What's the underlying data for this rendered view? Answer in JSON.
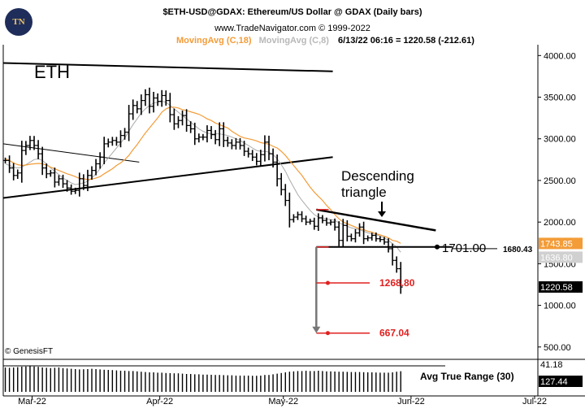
{
  "header": {
    "title": "$ETH-USD@GDAX:  Ethereum/US Dollar @ GDAX  (Daily bars)",
    "copyright": "www.TradeNavigator.com © 1999-2022",
    "ma18_label": "MovingAvg (C,18)",
    "ma8_label": "MovingAvg (C,8)",
    "last_bar": "6/13/22 06:16 = 1220.58 (-212.61)"
  },
  "watermark": "© GenesisFT",
  "colors": {
    "price": "#000000",
    "ma18": "#f39c38",
    "ma8": "#aaaaaa",
    "target": "#e02020",
    "arrow": "#777777"
  },
  "chart_data": {
    "type": "ohlc",
    "symbol": "ETH",
    "x_ticks": [
      "Mar-22",
      "Apr-22",
      "May-22",
      "Jun-22",
      "Jul-22"
    ],
    "y_ticks": [
      "4000.00",
      "3500.00",
      "3000.00",
      "2500.00",
      "2000.00",
      "1500.00",
      "1000.00",
      "500.00"
    ],
    "ylim": [
      420,
      4130
    ],
    "first_bar": "2022-02-22",
    "close": [
      2740,
      2650,
      2560,
      2590,
      2860,
      2920,
      2980,
      2920,
      2820,
      2650,
      2580,
      2590,
      2480,
      2520,
      2460,
      2410,
      2370,
      2380,
      2520,
      2440,
      2560,
      2620,
      2700,
      2780,
      2940,
      2960,
      2980,
      2960,
      3040,
      3080,
      3300,
      3400,
      3360,
      3460,
      3530,
      3390,
      3490,
      3450,
      3520,
      3460,
      3290,
      3180,
      3220,
      3280,
      3160,
      3120,
      3000,
      3020,
      3020,
      3100,
      3050,
      2990,
      3120,
      2980,
      2950,
      2920,
      2960,
      2920,
      2850,
      2820,
      2780,
      2730,
      2810,
      2960,
      2820,
      2720,
      2520,
      2390,
      2260,
      2030,
      2060,
      2090,
      2040,
      2000,
      2010,
      1950,
      2050,
      2020,
      1990,
      2000,
      1940,
      1780,
      1960,
      1830,
      1800,
      1870,
      1940,
      1800,
      1810,
      1840,
      1800,
      1790,
      1760,
      1680,
      1540,
      1440,
      1220
    ],
    "ma18_y_values": [
      2760,
      2740,
      2710,
      2690,
      2680,
      2685,
      2695,
      2700,
      2705,
      2700,
      2685,
      2660,
      2640,
      2620,
      2600,
      2580,
      2565,
      2545,
      2525,
      2520,
      2510,
      2515,
      2530,
      2545,
      2580,
      2610,
      2640,
      2680,
      2710,
      2750,
      2800,
      2870,
      2930,
      3000,
      3070,
      3130,
      3190,
      3250,
      3320,
      3360,
      3380,
      3380,
      3370,
      3350,
      3340,
      3325,
      3310,
      3295,
      3270,
      3240,
      3220,
      3190,
      3170,
      3150,
      3130,
      3090,
      3060,
      3030,
      3010,
      3000,
      2990,
      2975,
      2955,
      2945,
      2935,
      2910,
      2890,
      2850,
      2800,
      2740,
      2680,
      2620,
      2560,
      2490,
      2420,
      2360,
      2310,
      2260,
      2200,
      2150,
      2090,
      2040,
      2000,
      1980,
      1960,
      1940,
      1920,
      1910,
      1890,
      1880,
      1860,
      1845,
      1830,
      1810,
      1780,
      1770,
      1744
    ],
    "ma8_y_values": [
      2700,
      2680,
      2660,
      2650,
      2660,
      2690,
      2720,
      2750,
      2760,
      2740,
      2700,
      2650,
      2610,
      2570,
      2530,
      2500,
      2470,
      2450,
      2460,
      2470,
      2490,
      2530,
      2580,
      2640,
      2710,
      2770,
      2830,
      2890,
      2950,
      3010,
      3090,
      3170,
      3240,
      3310,
      3360,
      3400,
      3430,
      3440,
      3450,
      3440,
      3400,
      3360,
      3320,
      3280,
      3240,
      3200,
      3160,
      3120,
      3090,
      3070,
      3060,
      3060,
      3060,
      3050,
      3040,
      3020,
      3000,
      2980,
      2950,
      2920,
      2890,
      2860,
      2850,
      2850,
      2840,
      2810,
      2760,
      2690,
      2610,
      2510,
      2420,
      2330,
      2260,
      2200,
      2140,
      2090,
      2060,
      2050,
      2040,
      2030,
      2020,
      1990,
      1970,
      1950,
      1930,
      1920,
      1910,
      1890,
      1870,
      1860,
      1850,
      1830,
      1810,
      1780,
      1740,
      1700,
      1637
    ],
    "price_labels": [
      "1743.85",
      "1636.80",
      "1220.58"
    ],
    "atr": {
      "title": "Avg True Range (30)",
      "labels": [
        "41.18",
        "127.44"
      ],
      "values": [
        150,
        148,
        150,
        152,
        155,
        156,
        158,
        156,
        154,
        150,
        148,
        146,
        148,
        150,
        146,
        144,
        142,
        140,
        138,
        139,
        140,
        142,
        140,
        138,
        136,
        135,
        134,
        132,
        130,
        130,
        128,
        128,
        126,
        124,
        122,
        120,
        120,
        118,
        118,
        116,
        115,
        114,
        114,
        112,
        110,
        110,
        108,
        108,
        106,
        106,
        105,
        104,
        104,
        103,
        102,
        102,
        100,
        100,
        100,
        100,
        99,
        99,
        100,
        104,
        104,
        108,
        112,
        116,
        120,
        124,
        126,
        128,
        128,
        130,
        128,
        128,
        130,
        128,
        126,
        126,
        125,
        124,
        124,
        123,
        122,
        122,
        122,
        121,
        120,
        120,
        119,
        118,
        118,
        118,
        120,
        124,
        127
      ]
    },
    "annotations": {
      "name": "ETH",
      "pattern": "Descending\ntriangle",
      "support": "1701.00",
      "support_right": "1680.43",
      "target1": "1268.80",
      "target2": "667.04"
    },
    "channel": {
      "upper": [
        [
          "2022-02-22",
          3910
        ],
        [
          "2022-05-13",
          3810
        ]
      ],
      "lower": [
        [
          "2022-02-22",
          2290
        ],
        [
          "2022-05-13",
          2780
        ]
      ]
    },
    "trendline": [
      [
        "2022-02-22",
        2940
      ],
      [
        "2022-03-27",
        2720
      ]
    ],
    "triangle": {
      "top": [
        [
          "2022-05-09",
          2150
        ],
        [
          "2022-06-07",
          1900
        ]
      ],
      "base": [
        [
          "2022-05-09",
          1701
        ],
        [
          "2022-06-11",
          1701
        ]
      ]
    },
    "projection": {
      "date": "2022-05-09",
      "from": 1701,
      "to": 667.04
    },
    "targets": {
      "date": "2022-05-11",
      "t1": 1268.8,
      "t2": 667.04
    }
  }
}
